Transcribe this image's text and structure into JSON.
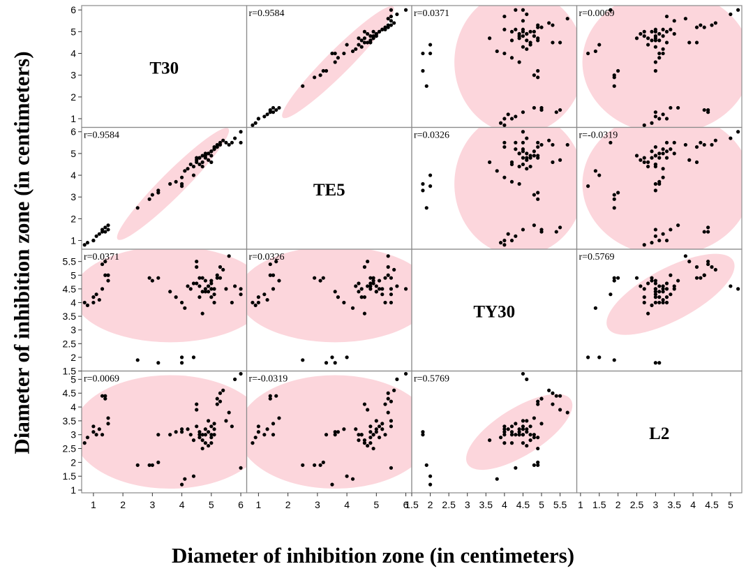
{
  "x_axis_label": "Diameter of inhibition zone (in centimeters)",
  "y_axis_label": "Diameter of inhibition zone (in centimeters)",
  "chart_data": {
    "type": "scatter-matrix",
    "variables": [
      "T30",
      "TE5",
      "TY30",
      "L2"
    ],
    "axes": [
      {
        "name": "T30",
        "range": [
          0.6,
          6.2
        ],
        "ticks": [
          1,
          2,
          3,
          4,
          5,
          6
        ],
        "tick_labels": [
          "1",
          "2",
          "3",
          "4",
          "5",
          "6"
        ]
      },
      {
        "name": "TE5",
        "range": [
          0.6,
          6.2
        ],
        "ticks": [
          1,
          2,
          3,
          4,
          5,
          6
        ],
        "tick_labels": [
          "1",
          "2",
          "3",
          "4",
          "5",
          "6"
        ]
      },
      {
        "name": "TY30",
        "range": [
          1.5,
          5.95
        ],
        "ticks": [
          1.5,
          2,
          2.5,
          3,
          3.5,
          4,
          4.5,
          5,
          5.5
        ],
        "tick_labels": [
          "1.5",
          "2",
          "2.5",
          "3",
          "3.5",
          "4",
          "4.5",
          "5",
          "5.5"
        ]
      },
      {
        "name": "L2",
        "range": [
          0.9,
          5.3
        ],
        "ticks": [
          1,
          1.5,
          2,
          2.5,
          3,
          3.5,
          4,
          4.5,
          5
        ],
        "tick_labels": [
          "1",
          "1.5",
          "2",
          "2.5",
          "3",
          "3.5",
          "4",
          "4.5",
          "5"
        ]
      }
    ],
    "correlations": [
      {
        "x": "TE5",
        "y": "T30",
        "label": "r=0.9584"
      },
      {
        "x": "TY30",
        "y": "T30",
        "label": "r=0.0371"
      },
      {
        "x": "L2",
        "y": "T30",
        "label": "r=0.0069"
      },
      {
        "x": "T30",
        "y": "TE5",
        "label": "r=0.9584"
      },
      {
        "x": "TY30",
        "y": "TE5",
        "label": "r=0.0326"
      },
      {
        "x": "L2",
        "y": "TE5",
        "label": "r=-0.0319"
      },
      {
        "x": "T30",
        "y": "TY30",
        "label": "r=0.0371"
      },
      {
        "x": "TE5",
        "y": "TY30",
        "label": "r=0.0326"
      },
      {
        "x": "L2",
        "y": "TY30",
        "label": "r=0.5769"
      },
      {
        "x": "T30",
        "y": "L2",
        "label": "r=0.0069"
      },
      {
        "x": "TE5",
        "y": "L2",
        "label": "r=-0.0319"
      },
      {
        "x": "TY30",
        "y": "L2",
        "label": "r=0.5769"
      }
    ],
    "observations": [
      [
        0.7,
        0.8,
        4.0,
        2.7
      ],
      [
        0.8,
        0.9,
        3.9,
        2.9
      ],
      [
        1.0,
        1.0,
        4.0,
        3.1
      ],
      [
        1.0,
        1.0,
        4.2,
        3.3
      ],
      [
        1.1,
        1.2,
        4.3,
        3.0
      ],
      [
        1.2,
        1.3,
        4.1,
        3.2
      ],
      [
        1.3,
        1.5,
        4.5,
        3.0
      ],
      [
        1.4,
        1.4,
        5.0,
        4.3
      ],
      [
        1.4,
        1.6,
        5.5,
        4.4
      ],
      [
        1.5,
        1.5,
        5.0,
        3.4
      ],
      [
        1.5,
        1.7,
        4.8,
        3.6
      ],
      [
        2.5,
        2.5,
        1.9,
        1.9
      ],
      [
        2.9,
        2.9,
        4.9,
        1.9
      ],
      [
        3.0,
        3.1,
        4.8,
        1.9
      ],
      [
        3.2,
        3.2,
        4.9,
        2.0
      ],
      [
        3.2,
        3.3,
        1.8,
        3.0
      ],
      [
        3.6,
        3.6,
        4.4,
        3.0
      ],
      [
        3.8,
        3.7,
        4.2,
        3.1
      ],
      [
        4.0,
        3.9,
        4.0,
        3.2
      ],
      [
        4.0,
        3.6,
        1.8,
        3.1
      ],
      [
        4.0,
        3.5,
        2.0,
        1.2
      ],
      [
        4.1,
        4.2,
        3.8,
        1.4
      ],
      [
        4.2,
        4.3,
        4.6,
        3.2
      ],
      [
        4.3,
        4.5,
        4.5,
        3.0
      ],
      [
        4.4,
        4.4,
        4.7,
        2.8
      ],
      [
        4.4,
        4.0,
        2.0,
        1.5
      ],
      [
        4.5,
        4.6,
        5.3,
        4.1
      ],
      [
        4.5,
        4.7,
        5.5,
        3.9
      ],
      [
        4.5,
        4.8,
        4.7,
        3.3
      ],
      [
        4.6,
        4.8,
        4.6,
        3.1
      ],
      [
        4.6,
        4.5,
        4.2,
        3.0
      ],
      [
        4.7,
        4.6,
        3.6,
        2.8
      ],
      [
        4.7,
        4.9,
        4.9,
        2.5
      ],
      [
        4.8,
        4.8,
        4.5,
        2.7
      ],
      [
        4.8,
        5.0,
        4.4,
        3.2
      ],
      [
        4.8,
        4.9,
        4.8,
        3.0
      ],
      [
        4.9,
        5.0,
        4.6,
        3.5
      ],
      [
        4.9,
        5.0,
        4.4,
        3.1
      ],
      [
        5.0,
        5.1,
        4.5,
        3.3
      ],
      [
        5.0,
        5.1,
        4.8,
        2.9
      ],
      [
        5.0,
        4.9,
        4.7,
        3.0
      ],
      [
        5.1,
        5.2,
        4.5,
        3.2
      ],
      [
        5.1,
        5.3,
        4.0,
        3.0
      ],
      [
        5.1,
        5.2,
        4.3,
        3.4
      ],
      [
        5.2,
        5.4,
        5.0,
        4.3
      ],
      [
        5.2,
        5.3,
        4.9,
        4.1
      ],
      [
        5.3,
        5.4,
        5.3,
        4.5
      ],
      [
        5.3,
        5.5,
        4.9,
        4.2
      ],
      [
        5.4,
        5.6,
        5.2,
        4.6
      ],
      [
        5.5,
        5.5,
        4.5,
        3.5
      ],
      [
        5.6,
        5.4,
        5.7,
        3.8
      ],
      [
        5.7,
        5.5,
        4.0,
        3.3
      ],
      [
        5.8,
        5.7,
        4.6,
        5.0
      ],
      [
        6.0,
        6.0,
        4.5,
        5.2
      ],
      [
        6.0,
        5.5,
        4.3,
        1.8
      ],
      [
        1.3,
        1.4,
        5.4,
        4.4
      ],
      [
        4.9,
        4.7,
        4.6,
        2.6
      ],
      [
        5.0,
        4.6,
        4.2,
        2.7
      ],
      [
        4.7,
        4.4,
        4.4,
        3.0
      ],
      [
        4.6,
        4.8,
        4.9,
        2.9
      ]
    ],
    "ellipses": [
      {
        "x": "TE5",
        "y": "T30",
        "cx": 3.7,
        "cy": 3.6,
        "rx": 3.6,
        "ry": 0.55,
        "angle_deg": 45
      },
      {
        "x": "T30",
        "y": "TE5",
        "cx": 3.7,
        "cy": 3.6,
        "rx": 3.6,
        "ry": 0.55,
        "angle_deg": 45
      },
      {
        "x": "TY30",
        "y": "T30",
        "cx": 4.4,
        "cy": 3.6,
        "rx": 1.75,
        "ry": 3.3,
        "angle_deg": 0
      },
      {
        "x": "L2",
        "y": "T30",
        "cx": 3.3,
        "cy": 3.6,
        "rx": 2.25,
        "ry": 3.3,
        "angle_deg": 0
      },
      {
        "x": "TY30",
        "y": "TE5",
        "cx": 4.4,
        "cy": 3.6,
        "rx": 1.75,
        "ry": 3.3,
        "angle_deg": 0
      },
      {
        "x": "L2",
        "y": "TE5",
        "cx": 3.3,
        "cy": 3.6,
        "rx": 2.25,
        "ry": 3.3,
        "angle_deg": 0
      },
      {
        "x": "T30",
        "y": "TY30",
        "cx": 3.6,
        "cy": 4.3,
        "rx": 3.3,
        "ry": 1.75,
        "angle_deg": 0
      },
      {
        "x": "TE5",
        "y": "TY30",
        "cx": 3.6,
        "cy": 4.3,
        "rx": 3.3,
        "ry": 1.75,
        "angle_deg": 0
      },
      {
        "x": "L2",
        "y": "TY30",
        "cx": 3.4,
        "cy": 4.3,
        "rx": 2.6,
        "ry": 0.95,
        "angle_deg": 28
      },
      {
        "x": "T30",
        "y": "L2",
        "cx": 3.6,
        "cy": 3.1,
        "rx": 3.3,
        "ry": 2.05,
        "angle_deg": 0
      },
      {
        "x": "TE5",
        "y": "L2",
        "cx": 3.6,
        "cy": 3.1,
        "rx": 3.3,
        "ry": 2.05,
        "angle_deg": 0
      },
      {
        "x": "TY30",
        "y": "L2",
        "cx": 4.4,
        "cy": 3.1,
        "rx": 2.2,
        "ry": 0.85,
        "angle_deg": 32
      }
    ],
    "colors": {
      "ellipse_fill": "#fcd6dc",
      "point": "#000000",
      "frame": "#8a8a8a"
    },
    "grid": false
  }
}
